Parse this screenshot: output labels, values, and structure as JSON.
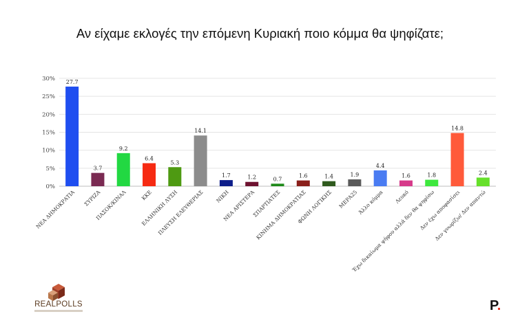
{
  "title": "Αν είχαμε εκλογές την επόμενη Κυριακή ποιο κόμμα θα ψηφίζατε;",
  "chart_data": {
    "type": "bar",
    "title": "Αν είχαμε εκλογές την επόμενη Κυριακή ποιο κόμμα θα ψηφίζατε;",
    "xlabel": "",
    "ylabel": "",
    "ylim": [
      0,
      30
    ],
    "yticks": [
      "0%",
      "5%",
      "10%",
      "15%",
      "20%",
      "25%",
      "30%"
    ],
    "grid": true,
    "categories": [
      "ΝΕΑ ΔΗΜΟΚΡΑΤΙΑ",
      "ΣΥΡΙΖΑ",
      "ΠΑΣΟΚ/ΚΙΝΑΛ",
      "ΚΚΕ",
      "ΕΛΛΗΝΙΚΗ ΛΥΣΗ",
      "ΠΛΕΥΣΗ ΕΛΕΥΘΕΡΙΑΣ",
      "ΝΙΚΗ",
      "ΝΕΑ ΑΡΙΣΤΕΡΑ",
      "ΣΠΑΡΤΙΑΤΕΣ",
      "ΚΙΝΗΜΑ ΔΗΜΟΚΡΑΤΙΑΣ",
      "ΦΩΝΗ ΛΟΓΙΚΗΣ",
      "ΜΕΡΑ25",
      "Άλλο κόμμα",
      "Λευκό",
      "Έχω δικαίωμα ψήφου αλλά δεν θα ψηφίσω",
      "Δεν έχω αποφασίσει",
      "Δεν γνωρίζω/ Δεν απαντώ"
    ],
    "values": [
      27.7,
      3.7,
      9.2,
      6.4,
      5.3,
      14.1,
      1.7,
      1.2,
      0.7,
      1.6,
      1.4,
      1.9,
      4.4,
      1.6,
      1.8,
      14.8,
      2.4
    ],
    "value_labels": [
      "27.7",
      "3.7",
      "9.2",
      "6.4",
      "5.3",
      "14.1",
      "1.7",
      "1.2",
      "0.7",
      "1.6",
      "1.4",
      "1.9",
      "4.4",
      "1.6",
      "1.8",
      "14.8",
      "2.4"
    ],
    "colors": [
      "#1f4ef0",
      "#7a2a52",
      "#22d842",
      "#f62a12",
      "#4e9a12",
      "#8c8c8c",
      "#0e1e8a",
      "#6e1230",
      "#1f8a1a",
      "#8a1f1a",
      "#2f5a1e",
      "#5a5a5a",
      "#4a7cf2",
      "#d63a8a",
      "#3ee83e",
      "#ff5a3a",
      "#66e02a"
    ]
  },
  "logos": {
    "left_text": "REALPOLLS",
    "right_text": "P",
    "right_dot": "."
  }
}
